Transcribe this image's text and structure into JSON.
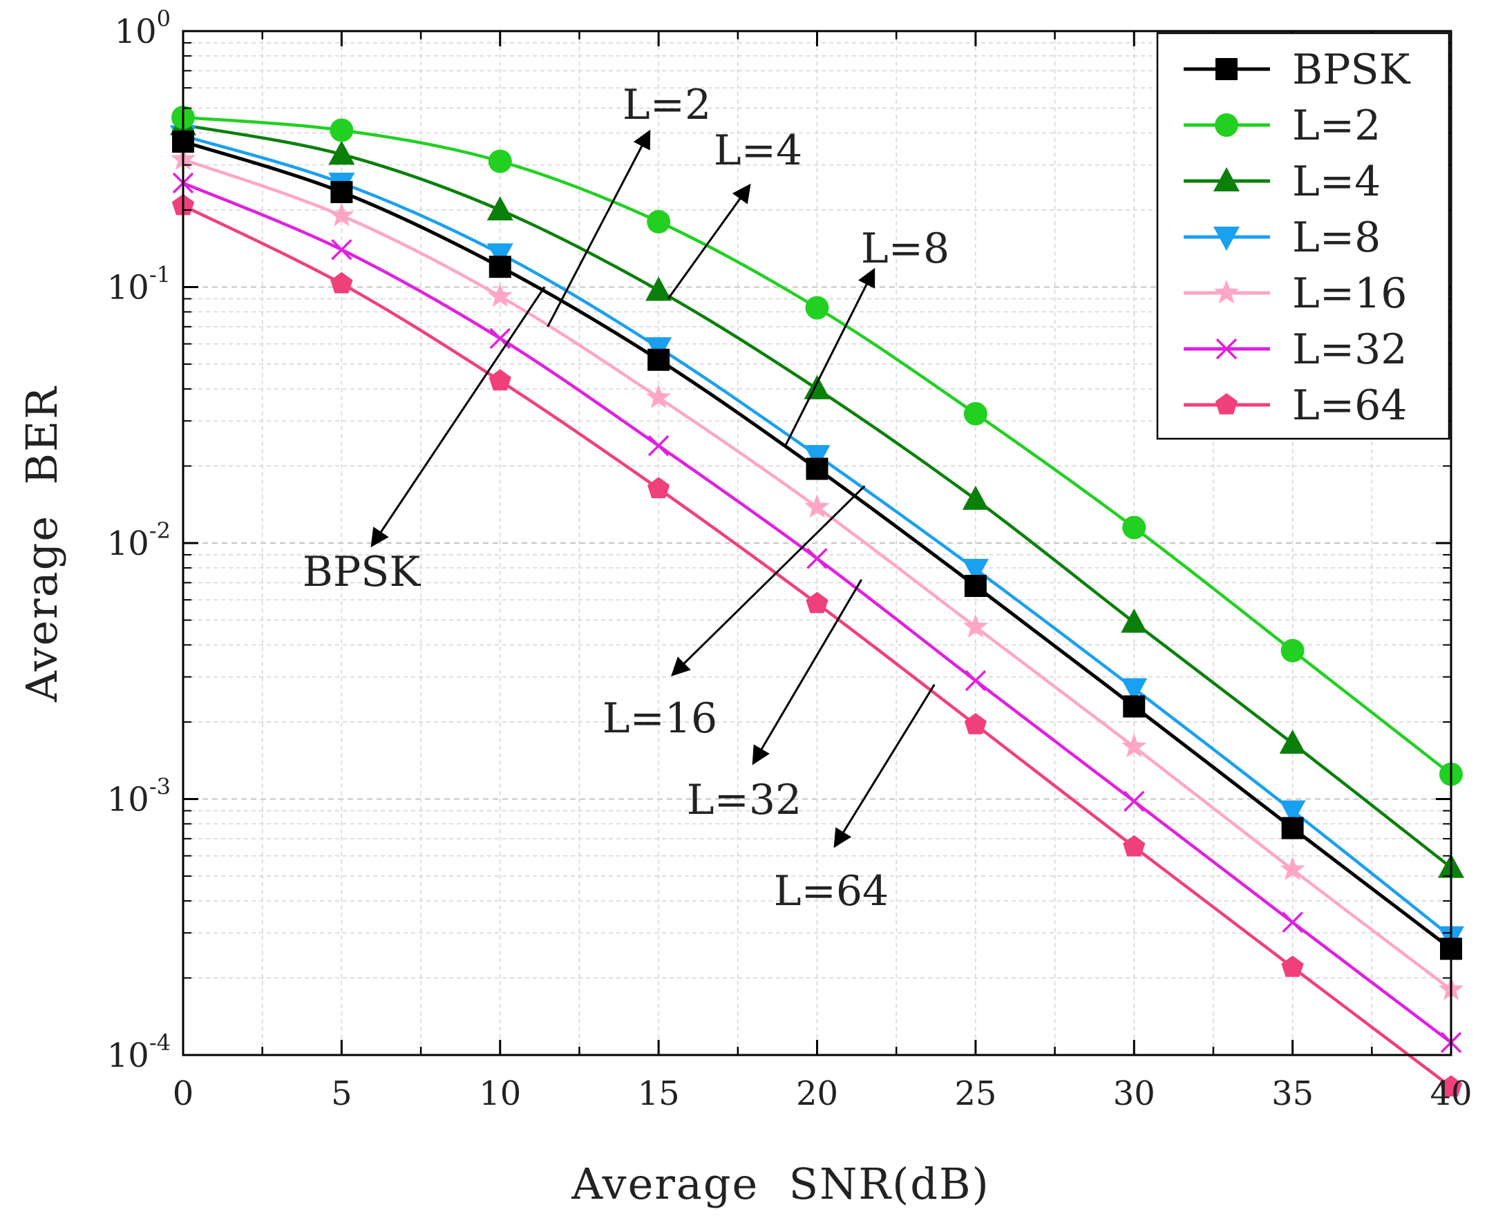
{
  "chart_data": {
    "type": "line",
    "title": "",
    "xlabel": "Average  SNR(dB)",
    "ylabel": "Average  BER",
    "xlim": [
      0,
      40
    ],
    "ylim_log10": [
      -4,
      0
    ],
    "y_scale": "log",
    "grid": true,
    "legend_position": "top-right",
    "x_ticks": [
      "0",
      "5",
      "10",
      "15",
      "20",
      "25",
      "30",
      "35",
      "40"
    ],
    "y_ticks": [
      {
        "base": "10",
        "exp": "0"
      },
      {
        "base": "10",
        "exp": "-1"
      },
      {
        "base": "10",
        "exp": "-2"
      },
      {
        "base": "10",
        "exp": "-3"
      },
      {
        "base": "10",
        "exp": "-4"
      }
    ],
    "x": [
      0,
      5,
      10,
      15,
      20,
      25,
      30,
      35,
      40
    ],
    "series": [
      {
        "name": "BPSK",
        "color": "#000000",
        "marker": "square",
        "values": [
          0.37,
          0.235,
          0.12,
          0.052,
          0.0195,
          0.0068,
          0.0023,
          0.00077,
          0.00026
        ]
      },
      {
        "name": "L=2",
        "color": "#22d022",
        "marker": "circle",
        "values": [
          0.46,
          0.41,
          0.31,
          0.18,
          0.083,
          0.032,
          0.0115,
          0.0038,
          0.00125
        ]
      },
      {
        "name": "L=4",
        "color": "#0a800a",
        "marker": "triangle-up",
        "values": [
          0.43,
          0.33,
          0.2,
          0.097,
          0.04,
          0.0148,
          0.0049,
          0.00165,
          0.00054
        ]
      },
      {
        "name": "L=8",
        "color": "#1aa0f0",
        "marker": "triangle-down",
        "values": [
          0.39,
          0.255,
          0.135,
          0.058,
          0.022,
          0.0079,
          0.0027,
          0.0009,
          0.00029
        ]
      },
      {
        "name": "L=16",
        "color": "#ffa6c6",
        "marker": "star",
        "values": [
          0.315,
          0.19,
          0.092,
          0.037,
          0.0138,
          0.0047,
          0.0016,
          0.00053,
          0.00018
        ]
      },
      {
        "name": "L=32",
        "color": "#e020e0",
        "marker": "x",
        "values": [
          0.255,
          0.14,
          0.063,
          0.024,
          0.0087,
          0.0029,
          0.00098,
          0.00033,
          0.000112
        ]
      },
      {
        "name": "L=64",
        "color": "#f0407a",
        "marker": "pentagon",
        "values": [
          0.208,
          0.103,
          0.043,
          0.0163,
          0.0058,
          0.00195,
          0.00065,
          0.00022,
          7.5e-05
        ]
      }
    ],
    "annotations": [
      {
        "text": "L=2",
        "series": "L=2",
        "arrow_to": {
          "x": 11.5,
          "y": 0.07
        }
      },
      {
        "text": "L=4",
        "series": "L=4",
        "arrow_to": {
          "x": 15.3,
          "y": 0.09
        }
      },
      {
        "text": "L=8",
        "series": "L=8",
        "arrow_to": {
          "x": 19.0,
          "y": 0.024
        }
      },
      {
        "text": "L=16",
        "series": "L=16",
        "arrow_to": {
          "x": 21.5,
          "y": 0.0167
        }
      },
      {
        "text": "L=32",
        "series": "L=32",
        "arrow_to": {
          "x": 21.4,
          "y": 0.0072
        }
      },
      {
        "text": "L=64",
        "series": "L=64",
        "arrow_to": {
          "x": 23.7,
          "y": 0.0028
        }
      },
      {
        "text": "BPSK",
        "series": "BPSK",
        "arrow_to": {
          "x": 11.4,
          "y": 0.1
        }
      }
    ]
  }
}
